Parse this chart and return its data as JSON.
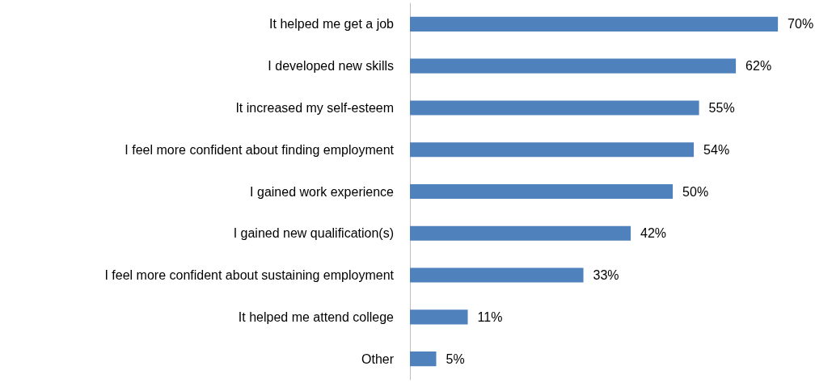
{
  "chart_data": {
    "type": "bar",
    "orientation": "horizontal",
    "categories": [
      "It helped me get a job",
      "I developed new skills",
      "It increased my self-esteem",
      "I feel more confident about finding employment",
      "I gained work experience",
      "I gained new qualification(s)",
      "I feel more confident about sustaining employment",
      "It helped me attend college",
      "Other"
    ],
    "values": [
      70,
      62,
      55,
      54,
      50,
      42,
      33,
      11,
      5
    ],
    "value_labels": [
      "70%",
      "62%",
      "55%",
      "54%",
      "50%",
      "42%",
      "33%",
      "11%",
      "5%"
    ],
    "color": "#4f81bd",
    "grid": false
  }
}
